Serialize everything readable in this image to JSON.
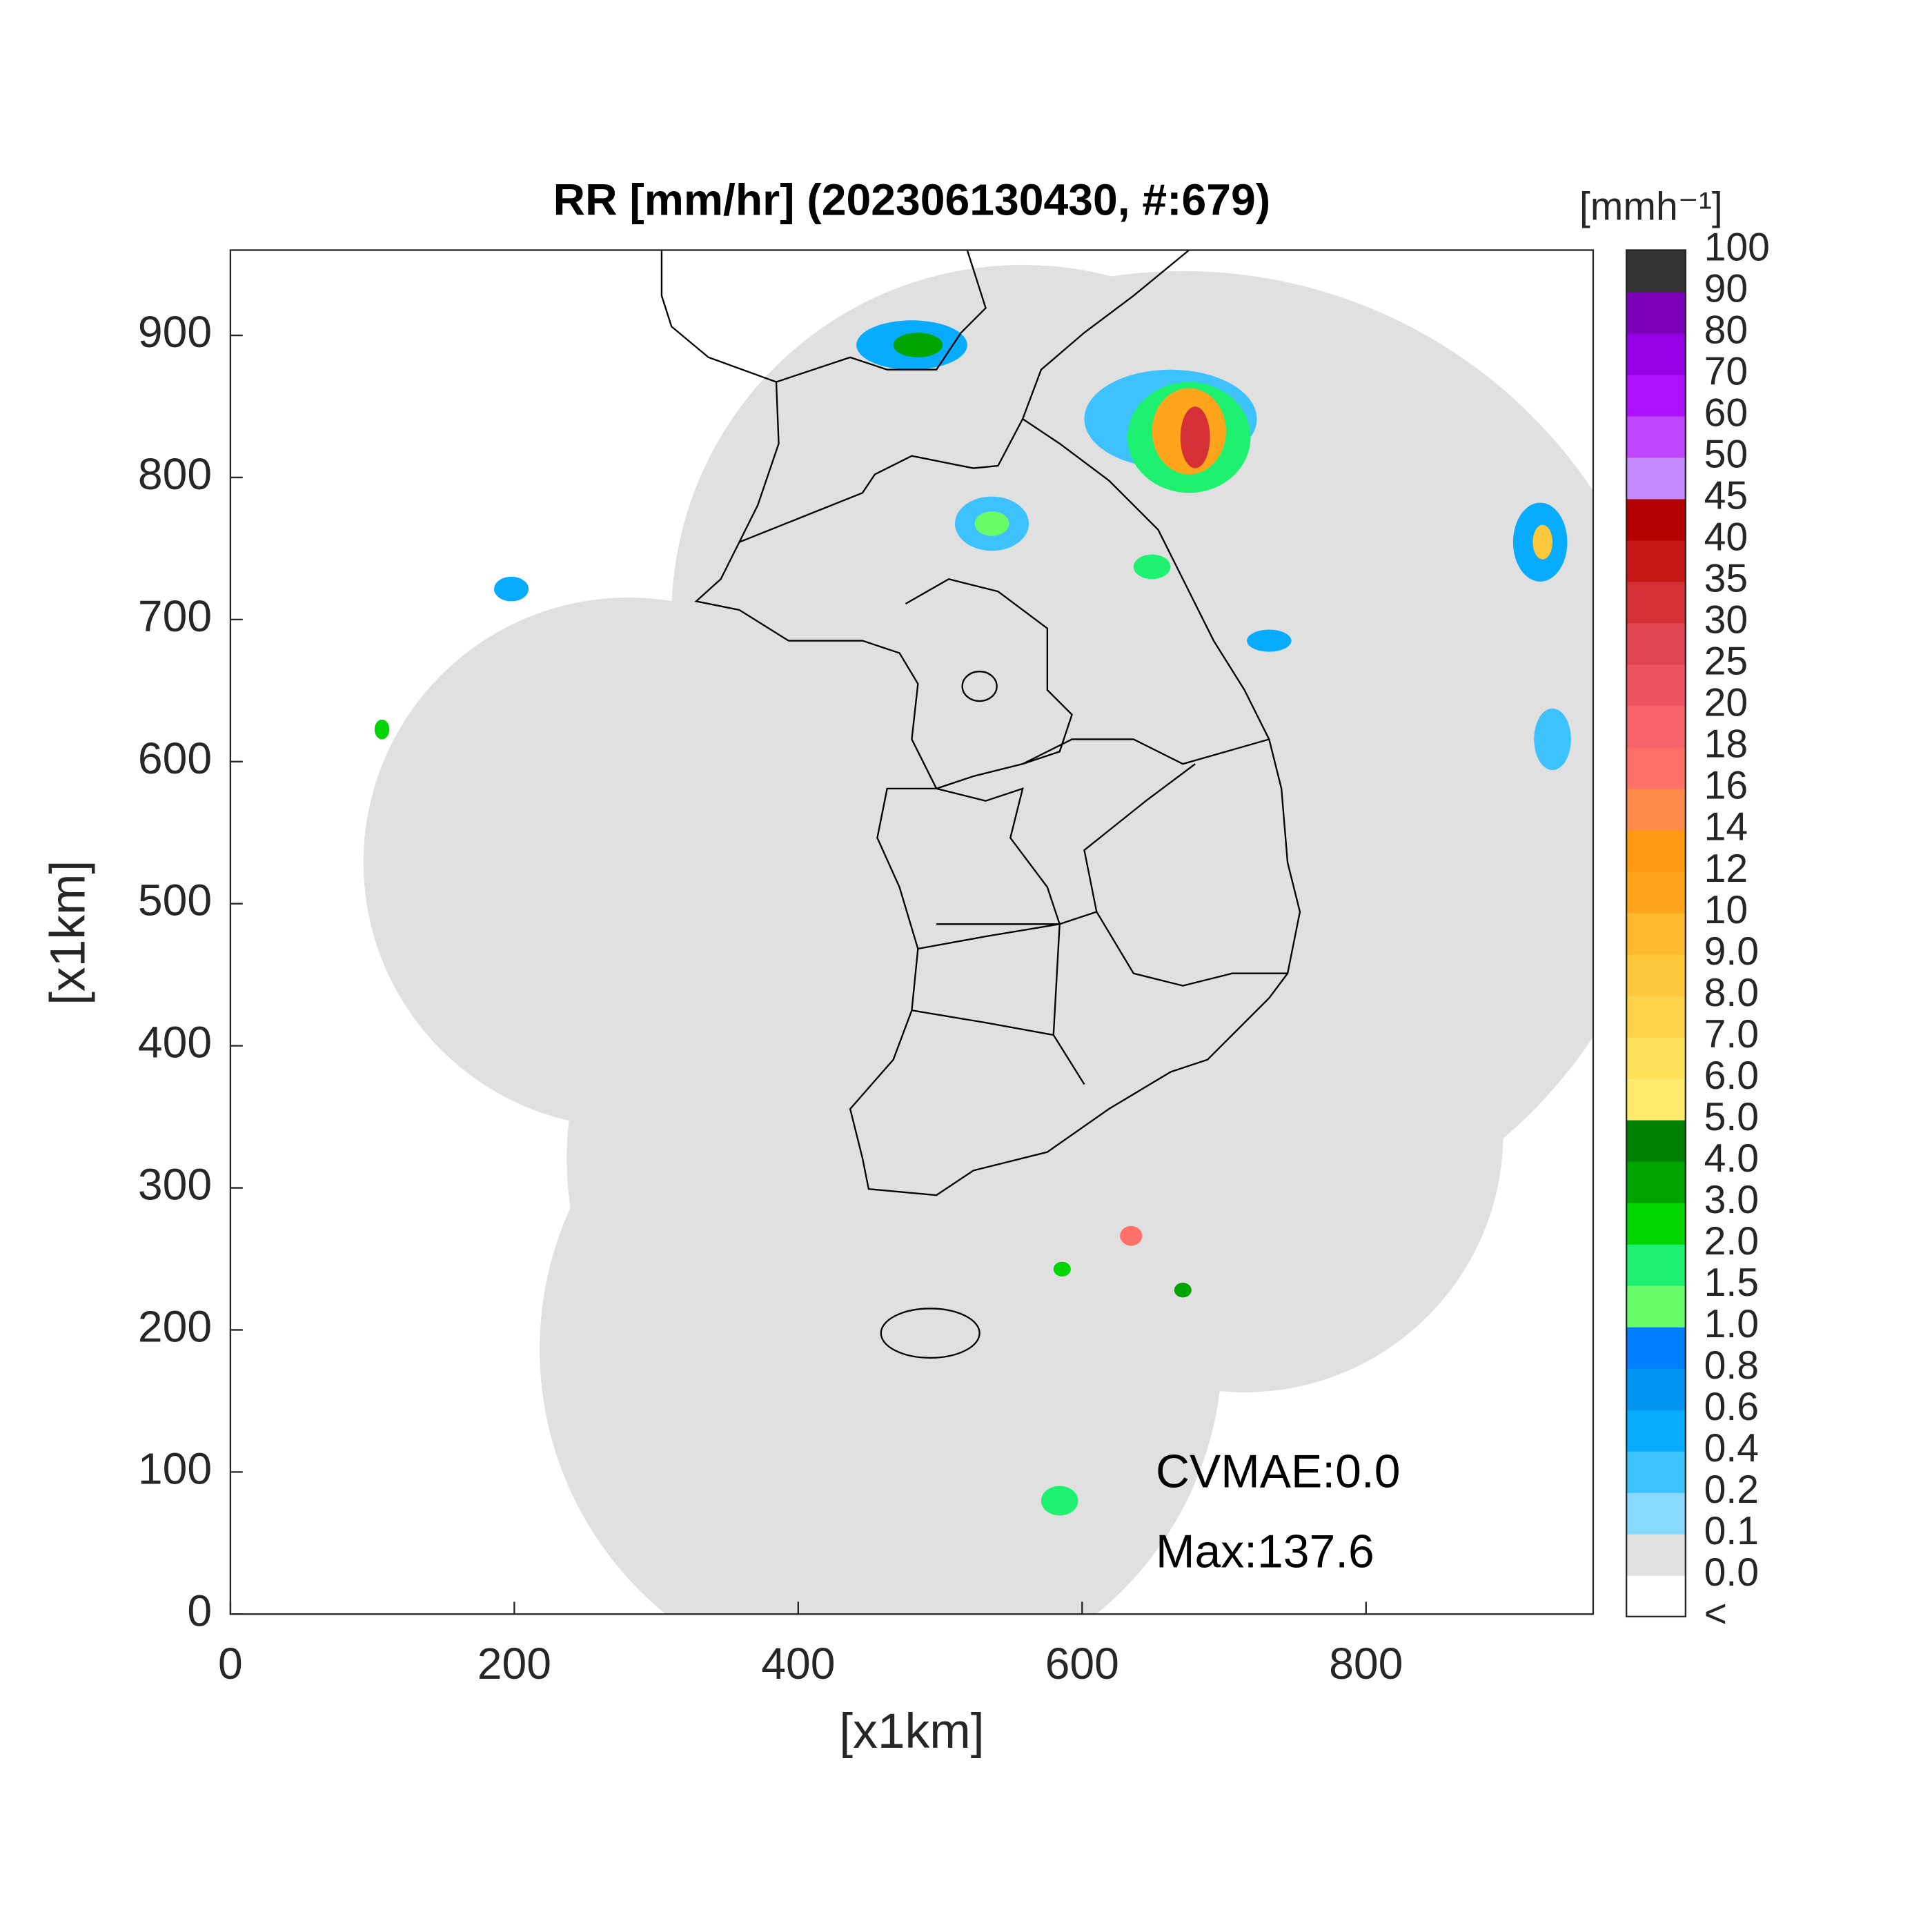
{
  "chart_data": {
    "type": "map",
    "title": "RR [mm/hr] (202306130430, #:679)",
    "xlabel": "[x1km]",
    "ylabel": "[x1km]",
    "xlim": [
      0,
      960
    ],
    "ylim": [
      0,
      960
    ],
    "xticks": [
      0,
      200,
      400,
      600,
      800
    ],
    "yticks": [
      0,
      100,
      200,
      300,
      400,
      500,
      600,
      700,
      800,
      900
    ],
    "annotations": [
      "CVMAE:0.0",
      "Max:137.6"
    ],
    "colorbar": {
      "label": "[mmh⁻¹]",
      "under_label": "<",
      "under_color": "#ffffff",
      "levels": [
        {
          "value": 0,
          "label": "0.0"
        },
        0.1,
        0.2,
        0.4,
        0.6,
        0.8,
        {
          "value": 1,
          "label": "1.0"
        },
        1.5,
        {
          "value": 2,
          "label": "2.0"
        },
        {
          "value": 3,
          "label": "3.0"
        },
        {
          "value": 4,
          "label": "4.0"
        },
        {
          "value": 5,
          "label": "5.0"
        },
        {
          "value": 6,
          "label": "6.0"
        },
        {
          "value": 7,
          "label": "7.0"
        },
        {
          "value": 8,
          "label": "8.0"
        },
        {
          "value": 9,
          "label": "9.0"
        },
        10,
        12,
        14,
        16,
        18,
        20,
        25,
        30,
        35,
        40,
        45,
        50,
        60,
        70,
        80,
        90,
        100
      ],
      "colors": [
        "#e0e0e0",
        "#87d9ff",
        "#3ec1ff",
        "#07abff",
        "#0093f0",
        "#007fff",
        "#69fc69",
        "#1ef16f",
        "#00d500",
        "#00a400",
        "#008000",
        "#ffea6e",
        "#ffe05b",
        "#ffd24a",
        "#ffc83c",
        "#ffb92e",
        "#ffa51c",
        "#ff9a10",
        "#ff8a4a",
        "#ff7068",
        "#f6636b",
        "#ec5560",
        "#e04450",
        "#d43035",
        "#c81818",
        "#b40000",
        "#c389ff",
        "#c046ff",
        "#ad11ff",
        "#9600e6",
        "#7c00b8",
        "#333333"
      ]
    }
  }
}
